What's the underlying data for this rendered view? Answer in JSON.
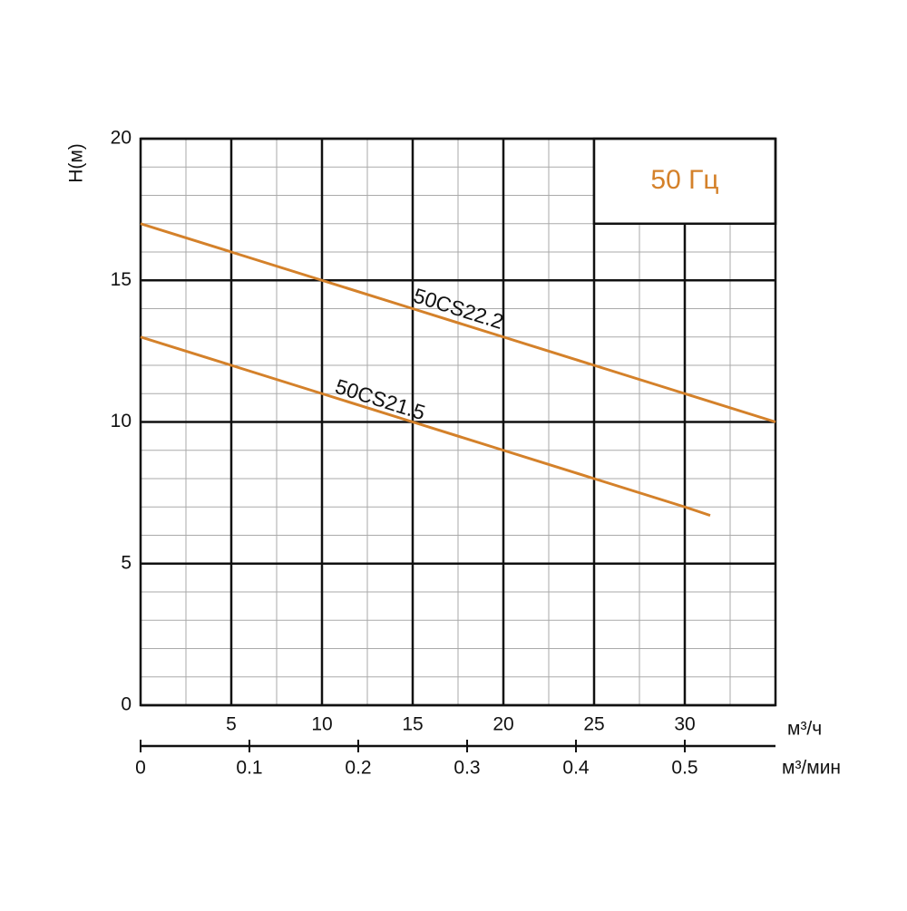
{
  "chart_data": {
    "type": "line",
    "ylabel": "H(м)",
    "xlabel": "м³/ч",
    "x2label": "м³/мин",
    "annotation": "50 Гц",
    "xlim": [
      0,
      35
    ],
    "xticks": [
      5,
      10,
      15,
      20,
      25,
      30
    ],
    "ylim": [
      0,
      20
    ],
    "yticks": [
      0,
      5,
      10,
      15,
      20
    ],
    "x2lim": [
      0,
      0.5833
    ],
    "x2ticks": [
      0,
      0.1,
      0.2,
      0.3,
      0.4,
      0.5
    ],
    "grid": true,
    "minor_grid": {
      "x": 2.5,
      "y": 1
    },
    "series": [
      {
        "name": "50CS22.2",
        "color": "#d4812a",
        "x": [
          0,
          5,
          10,
          15,
          20,
          25,
          30,
          35
        ],
        "values": [
          17,
          16,
          15,
          14,
          13,
          12,
          11,
          10
        ]
      },
      {
        "name": "50CS21.5",
        "color": "#d4812a",
        "x": [
          0,
          5,
          10,
          15,
          20,
          25,
          30,
          31.4
        ],
        "values": [
          13,
          12,
          11,
          10,
          9,
          8,
          7,
          6.7
        ]
      }
    ]
  }
}
